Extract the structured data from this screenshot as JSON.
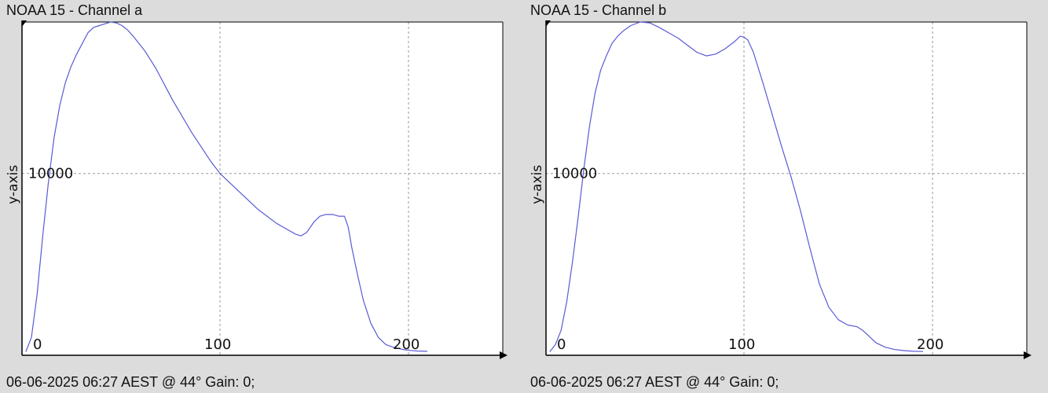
{
  "chart_data": [
    {
      "type": "line",
      "title": "NOAA 15 - Channel a",
      "ylabel": "y-axis",
      "xlabel": "",
      "footer": "06-06-2025 06:27 AEST @ 44° Gain: 0;",
      "xlim": [
        -5,
        250
      ],
      "ylim": [
        -200,
        18500
      ],
      "xticks": [
        0,
        100,
        200
      ],
      "yticks": [
        10000
      ],
      "grid": true,
      "line_color": "#5a5ad6",
      "series": [
        {
          "x": [
            -3,
            0,
            3,
            6,
            9,
            12,
            15,
            18,
            21,
            24,
            27,
            30,
            33,
            36,
            39,
            42,
            45,
            48,
            51,
            54,
            57,
            60,
            63,
            66,
            69,
            72,
            75,
            80,
            85,
            90,
            95,
            100,
            105,
            110,
            115,
            120,
            125,
            130,
            135,
            140,
            143,
            146,
            150,
            153,
            156,
            160,
            163,
            166,
            168,
            170,
            173,
            176,
            180,
            184,
            188,
            192,
            196,
            200,
            205,
            210
          ],
          "y": [
            0,
            800,
            3200,
            6500,
            9500,
            12000,
            13800,
            15100,
            16000,
            16700,
            17300,
            17900,
            18200,
            18300,
            18400,
            18500,
            18450,
            18300,
            18050,
            17700,
            17300,
            16900,
            16400,
            15900,
            15300,
            14700,
            14100,
            13200,
            12300,
            11500,
            10700,
            10000,
            9500,
            9000,
            8500,
            8000,
            7600,
            7200,
            6900,
            6600,
            6500,
            6700,
            7300,
            7600,
            7700,
            7700,
            7600,
            7600,
            7000,
            5800,
            4300,
            2900,
            1600,
            800,
            400,
            250,
            150,
            80,
            40,
            20
          ]
        }
      ]
    },
    {
      "type": "line",
      "title": "NOAA 15 - Channel b",
      "ylabel": "y-axis",
      "xlabel": "",
      "footer": "06-06-2025 06:27 AEST @ 44° Gain: 0;",
      "xlim": [
        -5,
        250
      ],
      "ylim": [
        -200,
        18500
      ],
      "xticks": [
        0,
        100,
        200
      ],
      "yticks": [
        10000
      ],
      "grid": true,
      "line_color": "#5a5ad6",
      "series": [
        {
          "x": [
            -3,
            0,
            3,
            6,
            9,
            12,
            15,
            18,
            21,
            24,
            27,
            30,
            33,
            36,
            40,
            45,
            50,
            55,
            60,
            65,
            70,
            75,
            80,
            85,
            90,
            95,
            98,
            100,
            102,
            105,
            110,
            115,
            120,
            125,
            130,
            135,
            140,
            145,
            150,
            155,
            160,
            163,
            166,
            170,
            175,
            180,
            185,
            190,
            195
          ],
          "y": [
            0,
            400,
            1200,
            2800,
            5000,
            7500,
            10200,
            12600,
            14500,
            15800,
            16600,
            17300,
            17700,
            18000,
            18300,
            18500,
            18450,
            18200,
            17900,
            17600,
            17200,
            16800,
            16600,
            16700,
            17000,
            17400,
            17700,
            17650,
            17500,
            16800,
            15100,
            13300,
            11500,
            9800,
            7900,
            5800,
            3800,
            2500,
            1800,
            1500,
            1400,
            1200,
            900,
            500,
            250,
            120,
            60,
            25,
            10
          ]
        }
      ]
    }
  ]
}
